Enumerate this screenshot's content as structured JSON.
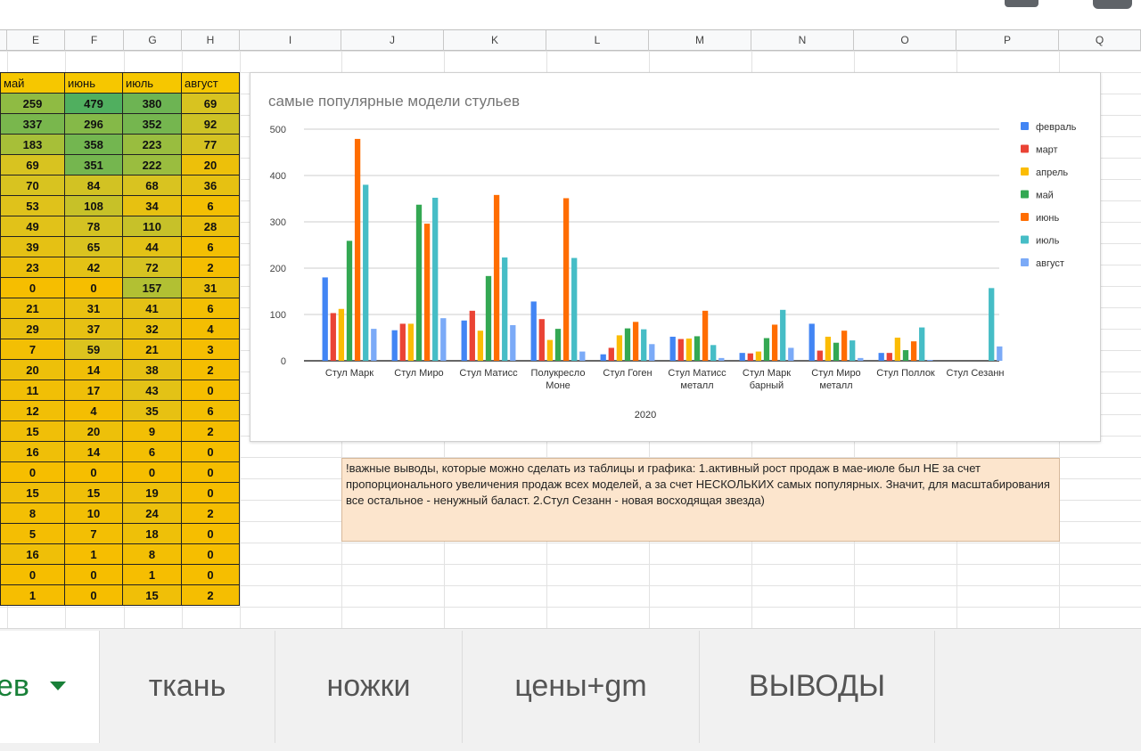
{
  "columns": [
    "E",
    "F",
    "G",
    "H",
    "I",
    "J",
    "K",
    "L",
    "M",
    "N",
    "O",
    "P",
    "Q"
  ],
  "table": {
    "headers": [
      "май",
      "июнь",
      "июль",
      "август"
    ],
    "rows": [
      [
        259,
        479,
        380,
        69
      ],
      [
        337,
        296,
        352,
        92
      ],
      [
        183,
        358,
        223,
        77
      ],
      [
        69,
        351,
        222,
        20
      ],
      [
        70,
        84,
        68,
        36
      ],
      [
        53,
        108,
        34,
        6
      ],
      [
        49,
        78,
        110,
        28
      ],
      [
        39,
        65,
        44,
        6
      ],
      [
        23,
        42,
        72,
        2
      ],
      [
        0,
        0,
        157,
        31
      ],
      [
        21,
        31,
        41,
        6
      ],
      [
        29,
        37,
        32,
        4
      ],
      [
        7,
        59,
        21,
        3
      ],
      [
        20,
        14,
        38,
        2
      ],
      [
        11,
        17,
        43,
        0
      ],
      [
        12,
        4,
        35,
        6
      ],
      [
        15,
        20,
        9,
        2
      ],
      [
        16,
        14,
        6,
        0
      ],
      [
        0,
        0,
        0,
        0
      ],
      [
        15,
        15,
        19,
        0
      ],
      [
        8,
        10,
        24,
        2
      ],
      [
        5,
        7,
        18,
        0
      ],
      [
        16,
        1,
        8,
        0
      ],
      [
        0,
        0,
        1,
        0
      ],
      [
        1,
        0,
        15,
        2
      ]
    ]
  },
  "chart_data": {
    "type": "bar",
    "title": "самые популярные модели стульев",
    "xlabel": "2020",
    "ylabel": "",
    "ylim": [
      0,
      500
    ],
    "yticks": [
      "0",
      "100",
      "200",
      "300",
      "400",
      "500"
    ],
    "grid": true,
    "legend_position": "right",
    "categories": [
      [
        "Стул Марк"
      ],
      [
        "Стул Миро"
      ],
      [
        "Стул Матисс"
      ],
      [
        "Полукресло",
        "Моне"
      ],
      [
        "Стул Гоген"
      ],
      [
        "Стул Матисс",
        "металл"
      ],
      [
        "Стул Марк",
        "барный"
      ],
      [
        "Стул Миро",
        "металл"
      ],
      [
        "Стул Поллок"
      ],
      [
        "Стул Сезанн"
      ]
    ],
    "series": [
      {
        "name": "февраль",
        "color": "#4285f4",
        "values": [
          180,
          66,
          87,
          128,
          14,
          52,
          17,
          80,
          17,
          0
        ]
      },
      {
        "name": "март",
        "color": "#ea4335",
        "values": [
          103,
          80,
          108,
          90,
          28,
          47,
          16,
          22,
          17,
          0
        ]
      },
      {
        "name": "апрель",
        "color": "#fbbc04",
        "values": [
          112,
          80,
          65,
          45,
          55,
          48,
          20,
          52,
          50,
          0
        ]
      },
      {
        "name": "май",
        "color": "#34a853",
        "values": [
          259,
          337,
          183,
          69,
          70,
          53,
          49,
          39,
          23,
          0
        ]
      },
      {
        "name": "июнь",
        "color": "#ff6d01",
        "values": [
          479,
          296,
          358,
          351,
          84,
          108,
          78,
          65,
          42,
          0
        ]
      },
      {
        "name": "июль",
        "color": "#46bdc6",
        "values": [
          380,
          352,
          223,
          222,
          68,
          34,
          110,
          44,
          72,
          157
        ]
      },
      {
        "name": "август",
        "color": "#7baaf7",
        "values": [
          69,
          92,
          77,
          20,
          36,
          6,
          28,
          6,
          2,
          31
        ]
      }
    ]
  },
  "note": "!важные выводы, которые можно сделать из таблицы и графика: 1.активный рост продаж в мае-июле был НЕ за счет пропорционального увеличения продаж всех моделей, а за счет НЕСКОЛЬКИХ самых популярных. Значит, для масштабирования все остальное - ненужный баласт. 2.Стул Сезанн - новая восходящая звезда)",
  "tabs": [
    {
      "label": "ев",
      "active": true
    },
    {
      "label": "ткань",
      "active": false
    },
    {
      "label": "ножки",
      "active": false
    },
    {
      "label": "цены+gm",
      "active": false
    },
    {
      "label": "ВЫВОДЫ",
      "active": false
    }
  ]
}
